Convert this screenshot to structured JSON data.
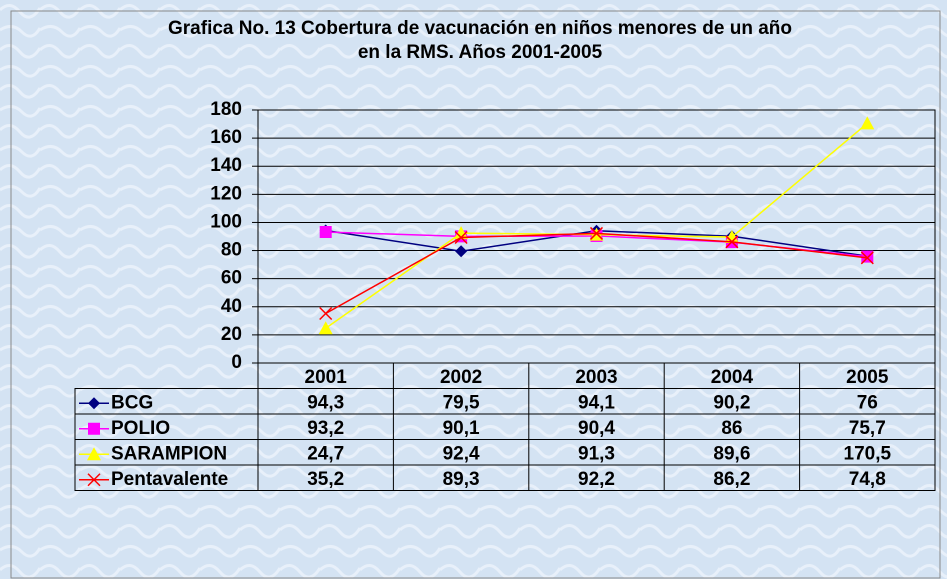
{
  "chart_data": {
    "type": "line",
    "title": [
      "Grafica No. 13  Cobertura de vacunación en niños menores de un año",
      "en la RMS.  Años 2001-2005"
    ],
    "categories": [
      "2001",
      "2002",
      "2003",
      "2004",
      "2005"
    ],
    "series": [
      {
        "name": "BCG",
        "color": "#000080",
        "marker": "diamond",
        "values": [
          94.3,
          79.5,
          94.1,
          90.2,
          76
        ],
        "value_labels": [
          "94,3",
          "79,5",
          "94,1",
          "90,2",
          "76"
        ]
      },
      {
        "name": "POLIO",
        "color": "#ff00ff",
        "marker": "square",
        "values": [
          93.2,
          90.1,
          90.4,
          86,
          75.7
        ],
        "value_labels": [
          "93,2",
          "90,1",
          "90,4",
          "86",
          "75,7"
        ]
      },
      {
        "name": "SARAMPION",
        "color": "#ffff00",
        "marker": "triangle",
        "values": [
          24.7,
          92.4,
          91.3,
          89.6,
          170.5
        ],
        "value_labels": [
          "24,7",
          "92,4",
          "91,3",
          "89,6",
          "170,5"
        ]
      },
      {
        "name": "Pentavalente",
        "color": "#ff0000",
        "marker": "x",
        "values": [
          35.2,
          89.3,
          92.2,
          86.2,
          74.8
        ],
        "value_labels": [
          "35,2",
          "89,3",
          "92,2",
          "86,2",
          "74,8"
        ]
      }
    ],
    "ylim": [
      0,
      180
    ],
    "yticks": [
      0,
      20,
      40,
      60,
      80,
      100,
      120,
      140,
      160,
      180
    ],
    "grid": true
  }
}
